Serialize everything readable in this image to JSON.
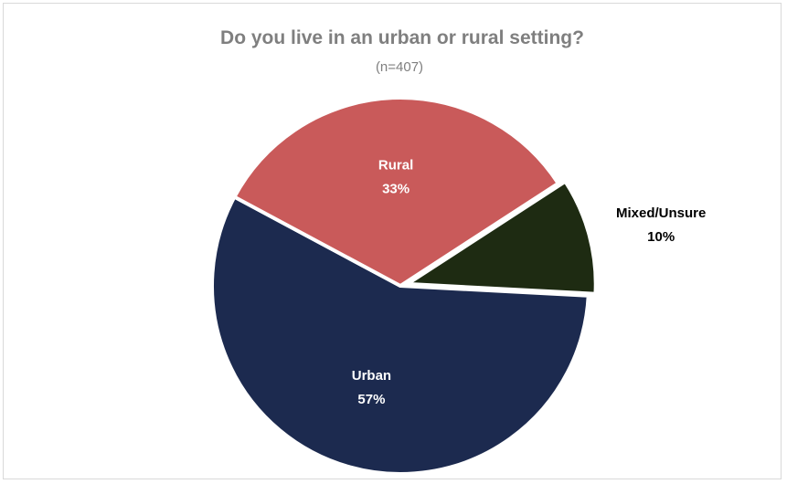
{
  "chart_data": {
    "type": "pie",
    "title": "Do you live in an urban or rural setting?",
    "subtitle": "(n=407)",
    "slices": [
      {
        "label": "Mixed/Unsure",
        "value": 10,
        "value_label": "10%",
        "color": "#1e2b12",
        "label_color": "#000000",
        "label_position": "outside"
      },
      {
        "label": "Urban",
        "value": 57,
        "value_label": "57%",
        "color": "#1c2a4f",
        "label_color": "#ffffff",
        "label_position": "inside"
      },
      {
        "label": "Rural",
        "value": 33,
        "value_label": "33%",
        "color": "#c95a5a",
        "label_color": "#ffffff",
        "label_position": "inside"
      }
    ]
  }
}
